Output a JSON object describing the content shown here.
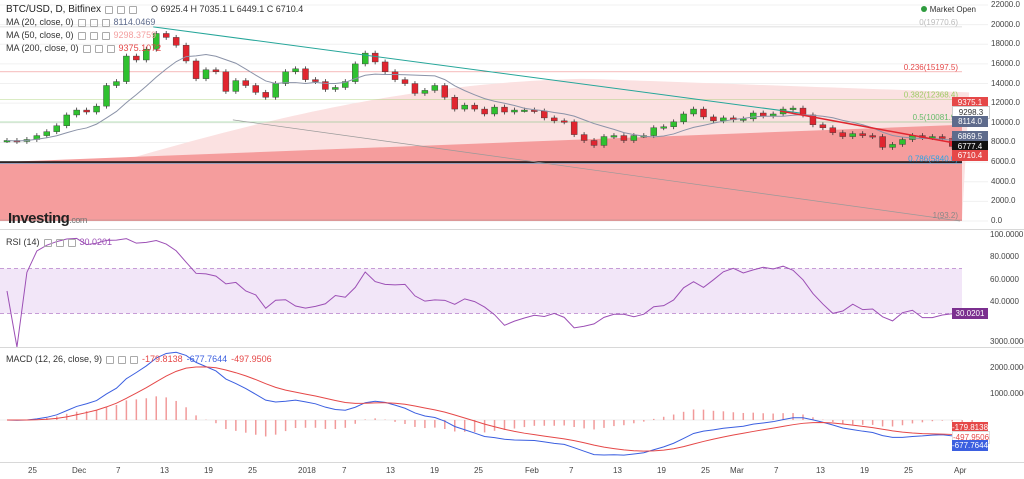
{
  "header": {
    "symbol": "BTC/USD, D, Bitfinex",
    "ohlc": "O 6925.4 H 7035.1 L 6449.1 C 6710.4",
    "market_status": "Market Open"
  },
  "indicators": {
    "ma20": {
      "label": "MA (20, close, 0)",
      "value": "8114.0469",
      "color": "#5e6b8c"
    },
    "ma50": {
      "label": "MA (50, close, 0)",
      "value": "9298.3759",
      "color": "#f4a0a0"
    },
    "ma200": {
      "label": "MA (200, close, 0)",
      "value": "9375.1072",
      "color": "#e54848"
    },
    "rsi": {
      "label": "RSI (14)",
      "value": "30.0201",
      "color": "#9c4fb5"
    },
    "macd": {
      "label": "MACD (12, 26, close, 9)",
      "macd": "-179.8138",
      "signal": "-677.7644",
      "hist": "-497.9506",
      "macd_color": "#e54848",
      "signal_color": "#3b5fe0"
    }
  },
  "logo": {
    "main": "Investing",
    "suffix": ".com"
  },
  "fib_levels": [
    "0(19770.6)",
    "0.236(15197.5)",
    "0.382(12368.4)",
    "0.5(10081.9)",
    "0.786(5840.0)",
    "1(93.2)"
  ],
  "price_axis": [
    "22000.0",
    "20000.0",
    "18000.0",
    "16000.0",
    "14000.0",
    "12000.0",
    "10000.0",
    "8000.0",
    "6000.0",
    "4000.0",
    "2000.0",
    "0.0"
  ],
  "price_tags": [
    {
      "text": "9375.1",
      "color": "#e54848"
    },
    {
      "text": "9298.3",
      "color": "#ffffff",
      "fg": "#333"
    },
    {
      "text": "8114.0",
      "color": "#5e6b8c"
    },
    {
      "text": "6869.5",
      "color": "#5e6b8c"
    },
    {
      "text": "6777.4",
      "color": "#111111"
    },
    {
      "text": "6710.4",
      "color": "#e54848"
    }
  ],
  "rsi_axis": [
    "100.0000",
    "80.0000",
    "60.0000",
    "40.0000"
  ],
  "rsi_tag": "30.0201",
  "macd_axis": [
    "3000.0000",
    "2000.0000",
    "1000.0000"
  ],
  "macd_tags": [
    "-179.8138",
    "-497.9506",
    "-677.7644"
  ],
  "date_axis": [
    "25",
    "Dec",
    "7",
    "13",
    "19",
    "25",
    "2018",
    "7",
    "13",
    "19",
    "25",
    "Feb",
    "7",
    "13",
    "19",
    "25",
    "Mar",
    "7",
    "13",
    "19",
    "25",
    "Apr"
  ],
  "chart_data": {
    "type": "candlestick",
    "ylim": [
      0,
      22000
    ],
    "closes": [
      8200,
      8100,
      8300,
      8700,
      9100,
      9700,
      10800,
      11300,
      11100,
      11700,
      13800,
      14200,
      16800,
      16400,
      17500,
      19100,
      18700,
      17900,
      16300,
      14500,
      15400,
      15200,
      13200,
      14300,
      13800,
      13100,
      12600,
      14000,
      15200,
      15500,
      14400,
      14200,
      13400,
      13600,
      14200,
      16000,
      17100,
      16200,
      15200,
      14400,
      14000,
      13000,
      13300,
      13800,
      12600,
      11400,
      11800,
      11400,
      10900,
      11600,
      11100,
      11300,
      11300,
      11200,
      10500,
      10200,
      10100,
      8800,
      8200,
      7700,
      8600,
      8700,
      8200,
      8700,
      8700,
      9500,
      9600,
      10100,
      10900,
      11400,
      10600,
      10200,
      10500,
      10300,
      10400,
      11000,
      10700,
      10900,
      11400,
      11500,
      10800,
      9800,
      9500,
      9000,
      8600,
      8900,
      8700,
      8600,
      7500,
      7800,
      8300,
      8700,
      8500,
      8600,
      8400,
      7600,
      6900,
      6710
    ]
  }
}
